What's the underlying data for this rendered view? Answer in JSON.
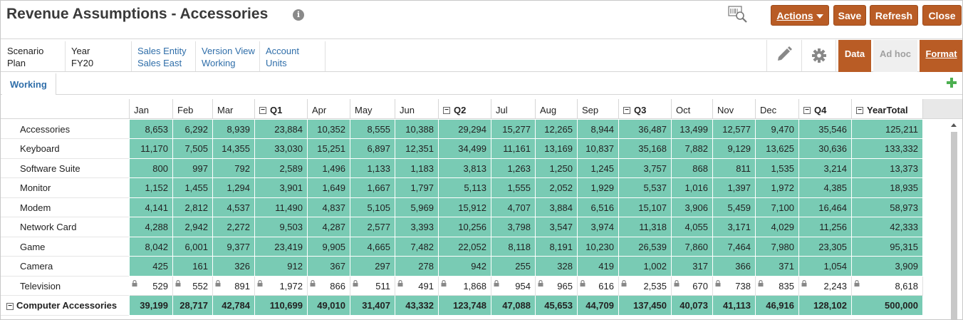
{
  "title": "Revenue Assumptions - Accessories",
  "buttons": {
    "actions_label": "Actions",
    "save_label": "Save",
    "refresh_label": "Refresh",
    "close_label": "Close",
    "accent_color": "#b95c25"
  },
  "pov": [
    {
      "dim": "Scenario",
      "member": "Plan"
    },
    {
      "dim": "Year",
      "member": "FY20"
    },
    {
      "dim": "Sales Entity",
      "member": "Sales East"
    },
    {
      "dim": "Version View",
      "member": "Working"
    },
    {
      "dim": "Account",
      "member": "Units"
    }
  ],
  "view_tabs": {
    "data": "Data",
    "adhoc": "Ad hoc",
    "format": "Format"
  },
  "form_tab": "Working",
  "grid": {
    "cell_color": "#79cbb4",
    "columns": [
      "Jan",
      "Feb",
      "Mar",
      "Q1",
      "Apr",
      "May",
      "Jun",
      "Q2",
      "Jul",
      "Aug",
      "Sep",
      "Q3",
      "Oct",
      "Nov",
      "Dec",
      "Q4",
      "YearTotal"
    ],
    "rows": [
      {
        "label": "Accessories",
        "values": [
          "8,653",
          "6,292",
          "8,939",
          "23,884",
          "10,352",
          "8,555",
          "10,388",
          "29,294",
          "15,277",
          "12,265",
          "8,944",
          "36,487",
          "13,499",
          "12,577",
          "9,470",
          "35,546",
          "125,211"
        ]
      },
      {
        "label": "Keyboard",
        "values": [
          "11,170",
          "7,505",
          "14,355",
          "33,030",
          "15,251",
          "6,897",
          "12,351",
          "34,499",
          "11,161",
          "13,169",
          "10,837",
          "35,168",
          "7,882",
          "9,129",
          "13,625",
          "30,636",
          "133,332"
        ]
      },
      {
        "label": "Software Suite",
        "values": [
          "800",
          "997",
          "792",
          "2,589",
          "1,496",
          "1,133",
          "1,183",
          "3,813",
          "1,263",
          "1,250",
          "1,245",
          "3,757",
          "868",
          "811",
          "1,535",
          "3,214",
          "13,373"
        ]
      },
      {
        "label": "Monitor",
        "values": [
          "1,152",
          "1,455",
          "1,294",
          "3,901",
          "1,649",
          "1,667",
          "1,797",
          "5,113",
          "1,555",
          "2,052",
          "1,929",
          "5,537",
          "1,016",
          "1,397",
          "1,972",
          "4,385",
          "18,935"
        ]
      },
      {
        "label": "Modem",
        "values": [
          "4,141",
          "2,812",
          "4,537",
          "11,490",
          "4,837",
          "5,105",
          "5,969",
          "15,912",
          "4,707",
          "3,884",
          "6,516",
          "15,107",
          "3,906",
          "5,459",
          "7,100",
          "16,464",
          "58,973"
        ]
      },
      {
        "label": "Network Card",
        "values": [
          "4,288",
          "2,942",
          "2,272",
          "9,503",
          "4,287",
          "2,577",
          "3,393",
          "10,256",
          "3,798",
          "3,547",
          "3,974",
          "11,318",
          "4,055",
          "3,171",
          "4,029",
          "11,256",
          "42,333"
        ]
      },
      {
        "label": "Game",
        "values": [
          "8,042",
          "6,001",
          "9,377",
          "23,419",
          "9,905",
          "4,665",
          "7,482",
          "22,052",
          "8,118",
          "8,191",
          "10,230",
          "26,539",
          "7,860",
          "7,464",
          "7,980",
          "23,305",
          "95,315"
        ]
      },
      {
        "label": "Camera",
        "values": [
          "425",
          "161",
          "326",
          "912",
          "367",
          "297",
          "278",
          "942",
          "255",
          "328",
          "419",
          "1,002",
          "317",
          "366",
          "371",
          "1,054",
          "3,909"
        ]
      },
      {
        "label": "Television",
        "locked": true,
        "values": [
          "529",
          "552",
          "891",
          "1,972",
          "866",
          "511",
          "491",
          "1,868",
          "954",
          "965",
          "616",
          "2,535",
          "670",
          "738",
          "835",
          "2,243",
          "8,618"
        ]
      },
      {
        "label": "Computer Accessories",
        "total": true,
        "values": [
          "39,199",
          "28,717",
          "42,784",
          "110,699",
          "49,010",
          "31,407",
          "43,332",
          "123,748",
          "47,088",
          "45,653",
          "44,709",
          "137,450",
          "40,073",
          "41,113",
          "46,916",
          "128,102",
          "500,000"
        ]
      }
    ]
  }
}
